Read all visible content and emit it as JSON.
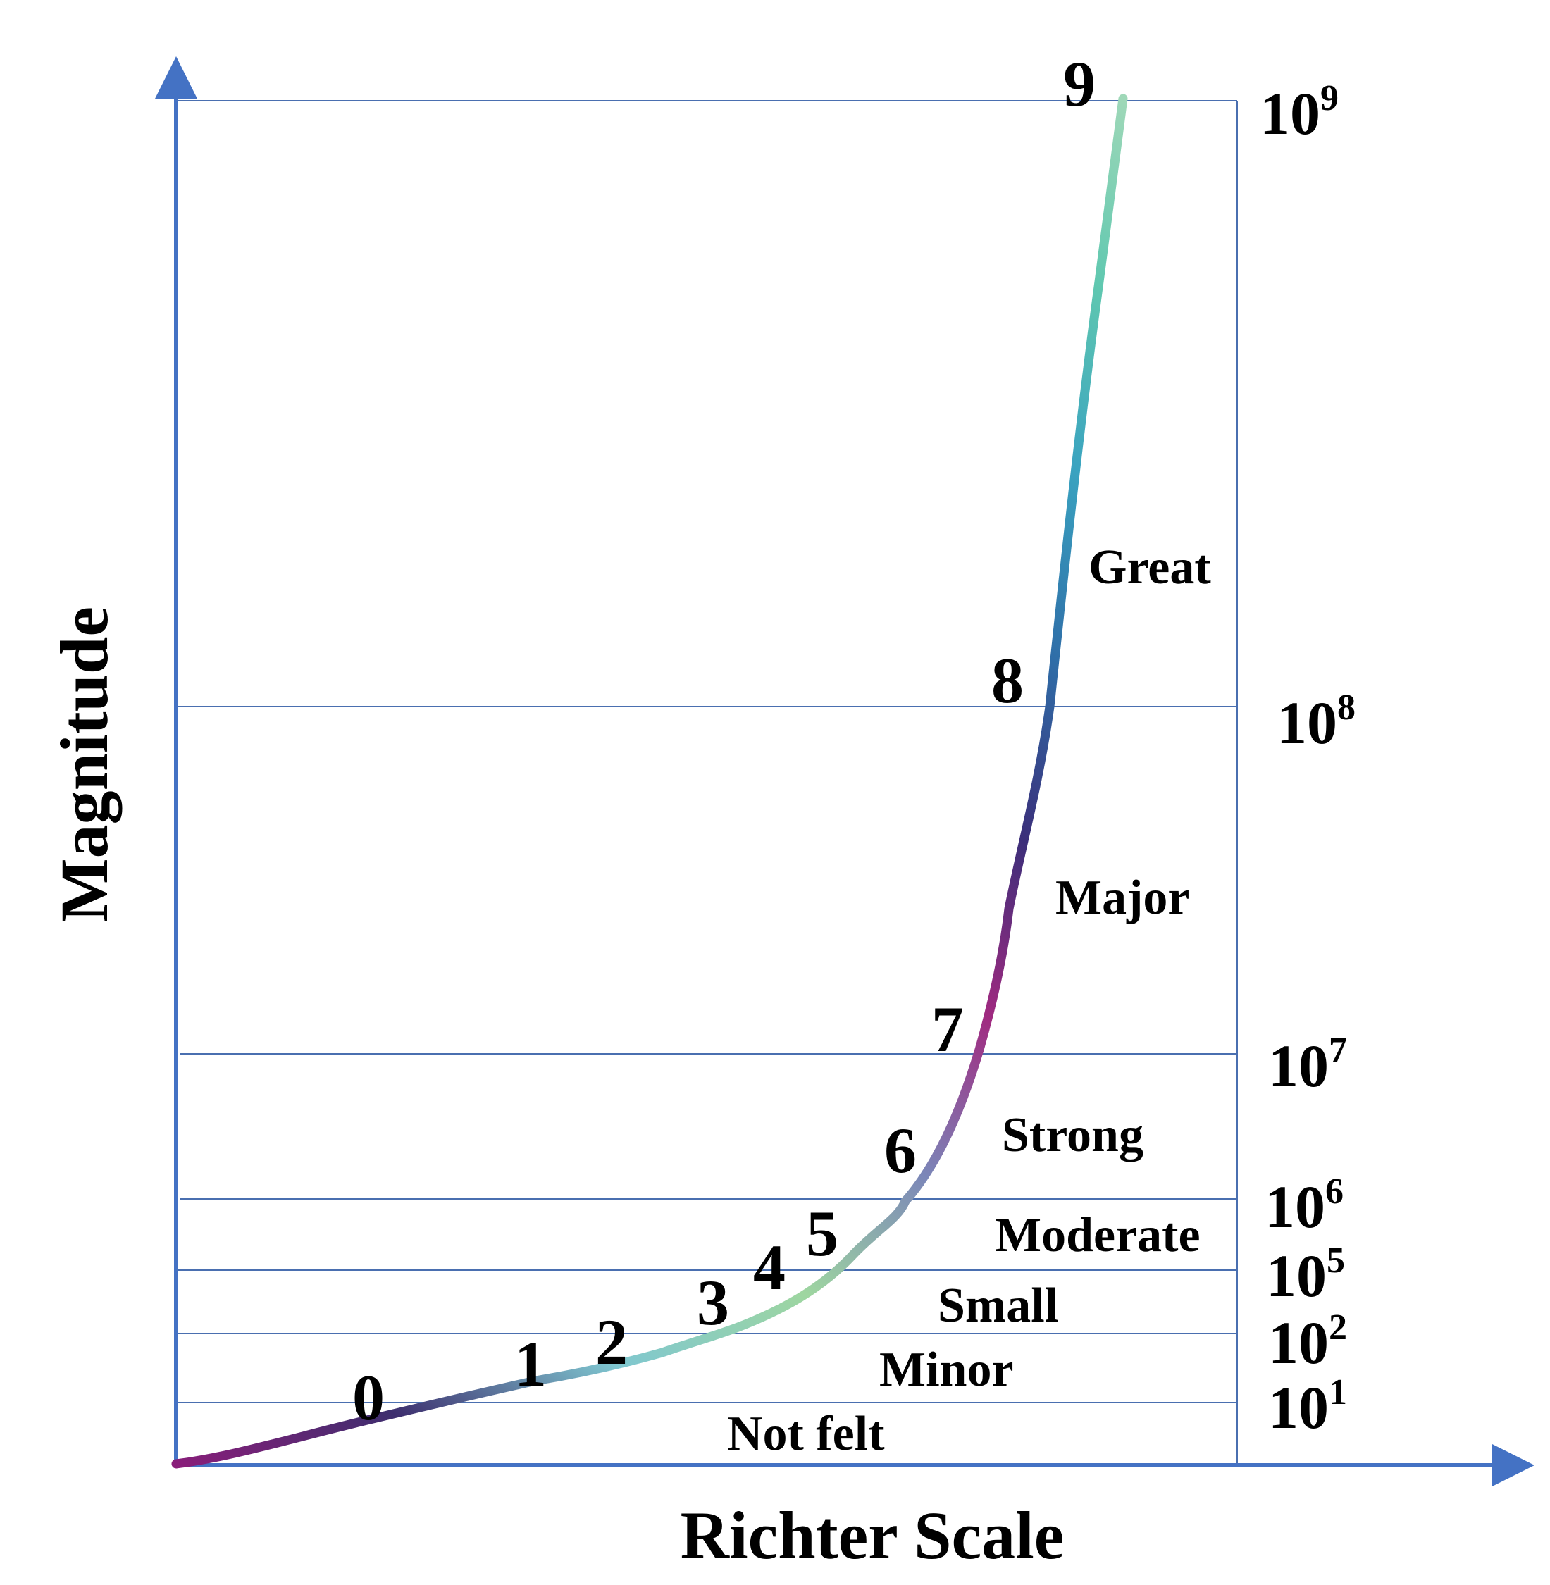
{
  "axes": {
    "x_label": "Richter Scale",
    "y_label": "Magnitude",
    "axis_color": "#4472c4",
    "grid_color": "#4a6fb0"
  },
  "power_labels": [
    {
      "base": "10",
      "exp": "9"
    },
    {
      "base": "10",
      "exp": "8"
    },
    {
      "base": "10",
      "exp": "7"
    },
    {
      "base": "10",
      "exp": "6"
    },
    {
      "base": "10",
      "exp": "5"
    },
    {
      "base": "10",
      "exp": "2"
    },
    {
      "base": "10",
      "exp": "1"
    }
  ],
  "categories": [
    "Great",
    "Major",
    "Strong",
    "Moderate",
    "Small",
    "Minor",
    "Not felt"
  ],
  "scale_numbers": [
    "0",
    "1",
    "2",
    "3",
    "4",
    "5",
    "6",
    "7",
    "8",
    "9"
  ],
  "curve_colors": [
    "#8a1e7a",
    "#3d2e6e",
    "#7fc7d0",
    "#9ed6a0",
    "#7b86b8",
    "#a02a80",
    "#3b2f7a",
    "#2f6ea8",
    "#3aa3c0",
    "#60c8b0",
    "#9fd8b8"
  ]
}
